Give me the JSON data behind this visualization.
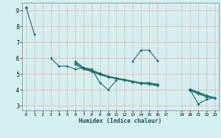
{
  "xlabel": "Humidex (Indice chaleur)",
  "background_color": "#d4efef",
  "grid_color": "#b8d8d8",
  "grid_color_minor": "#e8b8b8",
  "line_color": "#1a6e6a",
  "series": [
    [
      9.2,
      7.5,
      null,
      6.0,
      5.5,
      5.5,
      5.3,
      5.4,
      5.3,
      4.45,
      4.0,
      4.6,
      null,
      5.8,
      6.5,
      6.5,
      5.85,
      null,
      null,
      null,
      4.0,
      3.1,
      3.4,
      3.5
    ],
    [
      9.2,
      null,
      null,
      null,
      null,
      null,
      5.8,
      5.4,
      5.25,
      5.05,
      4.85,
      4.7,
      4.6,
      4.5,
      4.4,
      4.4,
      4.3,
      null,
      null,
      null,
      4.0,
      3.8,
      3.6,
      3.5
    ],
    [
      9.2,
      null,
      null,
      null,
      null,
      null,
      5.7,
      5.35,
      5.2,
      5.0,
      4.85,
      4.75,
      4.65,
      4.55,
      4.45,
      4.45,
      4.35,
      null,
      null,
      null,
      4.05,
      3.85,
      3.65,
      3.5
    ],
    [
      9.2,
      null,
      null,
      null,
      null,
      null,
      5.6,
      5.3,
      5.15,
      4.95,
      4.8,
      4.7,
      4.6,
      4.5,
      4.4,
      4.35,
      4.25,
      null,
      null,
      null,
      3.95,
      3.75,
      3.55,
      3.5
    ]
  ],
  "xlim": [
    -0.5,
    23.5
  ],
  "ylim": [
    2.7,
    9.5
  ],
  "yticks": [
    3,
    4,
    5,
    6,
    7,
    8,
    9
  ],
  "xtick_positions": [
    0,
    1,
    2,
    3,
    4,
    5,
    6,
    7,
    8,
    9,
    10,
    11,
    12,
    13,
    14,
    15,
    16,
    17,
    19,
    20,
    21,
    22,
    23
  ],
  "xtick_labels": [
    "0",
    "1",
    "2",
    "3",
    "4",
    "5",
    "6",
    "7",
    "8",
    "9",
    "10",
    "11",
    "12",
    "13",
    "14",
    "15",
    "16",
    "17",
    "19",
    "20",
    "21",
    "22",
    "23"
  ]
}
